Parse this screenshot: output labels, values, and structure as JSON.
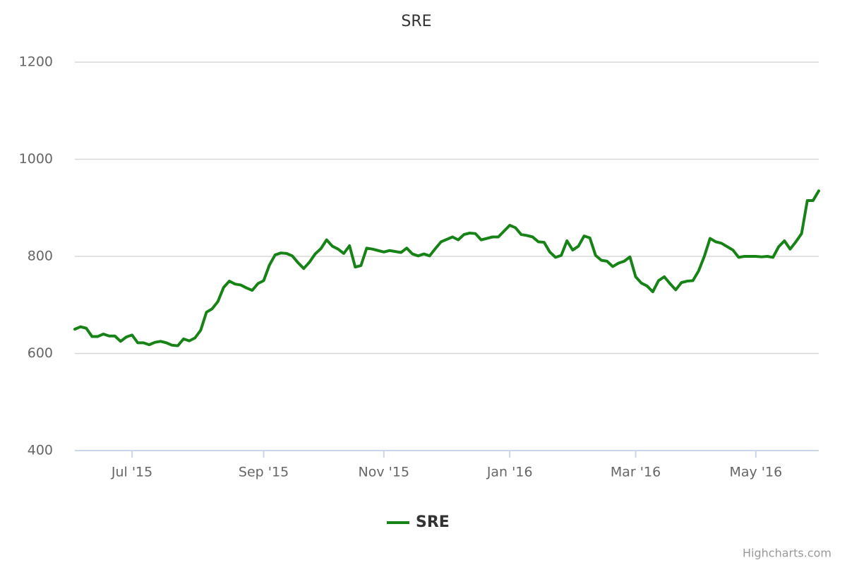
{
  "chart_data": {
    "type": "line",
    "title": "SRE",
    "categories": [
      null,
      null,
      null,
      null,
      null,
      null,
      null,
      null,
      null,
      null,
      "Jul '15",
      null,
      null,
      null,
      null,
      null,
      null,
      null,
      null,
      null,
      null,
      null,
      null,
      null,
      null,
      null,
      null,
      null,
      null,
      null,
      null,
      null,
      null,
      "Sep '15",
      null,
      null,
      null,
      null,
      null,
      null,
      null,
      null,
      null,
      null,
      null,
      null,
      null,
      null,
      null,
      null,
      null,
      null,
      null,
      null,
      "Nov '15",
      null,
      null,
      null,
      null,
      null,
      null,
      null,
      null,
      null,
      null,
      null,
      null,
      null,
      null,
      null,
      null,
      null,
      null,
      null,
      null,
      null,
      "Jan '16",
      null,
      null,
      null,
      null,
      null,
      null,
      null,
      null,
      null,
      null,
      null,
      null,
      null,
      null,
      null,
      null,
      null,
      null,
      null,
      null,
      null,
      "Mar '16",
      null,
      null,
      null,
      null,
      null,
      null,
      null,
      null,
      null,
      null,
      null,
      null,
      null,
      null,
      null,
      null,
      null,
      null,
      null,
      null,
      "May '16",
      null,
      null,
      null,
      null,
      null,
      null,
      null,
      null,
      null,
      null,
      null
    ],
    "series": [
      {
        "name": "SRE",
        "color": "#178317",
        "values": [
          650,
          655,
          652,
          635,
          635,
          640,
          636,
          636,
          625,
          634,
          638,
          622,
          622,
          618,
          623,
          625,
          622,
          617,
          616,
          630,
          626,
          632,
          648,
          685,
          692,
          707,
          736,
          749,
          743,
          741,
          735,
          730,
          744,
          750,
          782,
          803,
          807,
          806,
          801,
          787,
          775,
          788,
          805,
          816,
          834,
          821,
          815,
          806,
          822,
          778,
          781,
          817,
          815,
          812,
          809,
          812,
          810,
          808,
          817,
          805,
          801,
          805,
          801,
          816,
          830,
          835,
          840,
          834,
          845,
          848,
          847,
          834,
          837,
          840,
          840,
          852,
          864,
          859,
          845,
          843,
          840,
          830,
          829,
          809,
          798,
          802,
          832,
          813,
          821,
          842,
          838,
          802,
          792,
          790,
          779,
          786,
          790,
          799,
          758,
          745,
          739,
          727,
          750,
          758,
          744,
          731,
          746,
          749,
          750,
          770,
          800,
          837,
          830,
          827,
          820,
          813,
          798,
          800,
          800,
          800,
          799,
          800,
          798,
          820,
          832,
          815,
          830,
          847,
          915,
          915,
          935
        ]
      }
    ],
    "ylim": [
      400,
      1200
    ],
    "yticks": [
      400,
      600,
      800,
      1000,
      1200
    ],
    "grid": true,
    "credits": "Highcharts.com"
  }
}
